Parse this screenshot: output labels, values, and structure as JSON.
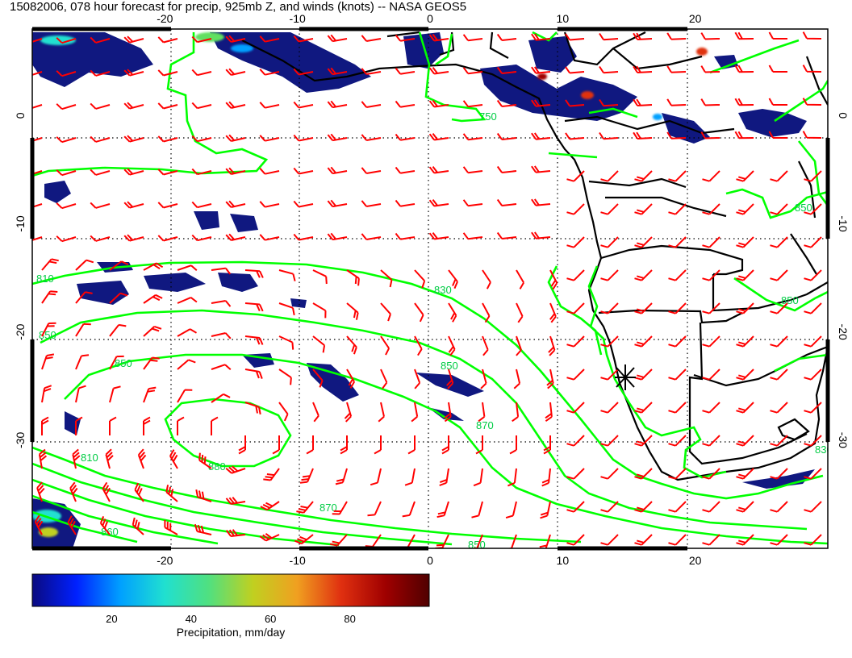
{
  "title": "15082006, 078 hour forecast for precip, 925mb Z, and winds (knots) -- NASA GEOS5",
  "map": {
    "lon_range": [
      -30,
      30
    ],
    "lat_range": [
      -40,
      8
    ],
    "lon_ticks": [
      -20,
      -10,
      0,
      10,
      20
    ],
    "lat_ticks": [
      0,
      -10,
      -20,
      -30
    ],
    "lon_tick_labels": [
      "-20",
      "-10",
      "0",
      "10",
      "20"
    ],
    "lat_tick_labels": [
      "0",
      "-10",
      "-20",
      "-30"
    ],
    "grid": "dotted",
    "colors": {
      "land_border": "#000000",
      "wind_barbs": "#ff0000",
      "contours": "#00ff00",
      "contour_labels": "#00cc44"
    },
    "contour_labels": [
      "750",
      "810",
      "830",
      "850",
      "850",
      "850",
      "870",
      "880",
      "860",
      "870",
      "850",
      "850",
      "850",
      "830",
      "810"
    ],
    "station_marker": "star-marker-icon",
    "colorbar": {
      "label": "Precipitation, mm/day",
      "ticks": [
        20,
        40,
        60,
        80
      ],
      "tick_labels": [
        "20",
        "40",
        "60",
        "80"
      ],
      "range": [
        0,
        100
      ],
      "stops": [
        "#0a0a80",
        "#0020ff",
        "#00a0ff",
        "#20e0d0",
        "#50e080",
        "#c0d020",
        "#f0a020",
        "#e03010",
        "#a00000",
        "#500000"
      ]
    }
  }
}
